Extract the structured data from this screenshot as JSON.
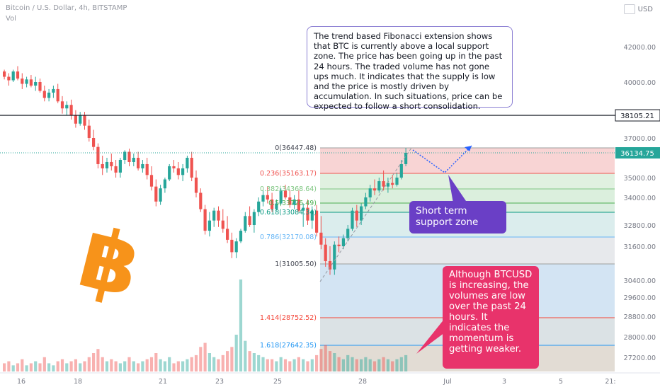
{
  "header": {
    "symbol_line": "Bitcoin / U.S. Dollar, 4h, BITSTAMP",
    "volume_label": "Vol",
    "currency": "USD"
  },
  "colors": {
    "up": "#26a69a",
    "down": "#ef5350",
    "bitcoin_logo": "#f7931a",
    "note_border": "#8b7fd3",
    "support_box": "#6a3fc6",
    "weak_box": "#e8336b"
  },
  "annotations": {
    "analysis_note": "The trend based Fibonacci extension shows that BTC is currently above a local support zone. The price has been going up in the past 24 hours. The traded volume has not gone ups much. It indicates that the supply is low and the price is mostly driven by accumulation. In such situations, price can be expected to follow a short consolidation.",
    "support_zone": "Short term support zone",
    "momentum_note": "Although BTCUSD is increasing, the volumes are low over the past 24 hours. It indicates the momentum is getting weaker."
  },
  "chart_data": {
    "type": "candlestick",
    "title": "Bitcoin / U.S. Dollar, 4h, BITSTAMP",
    "y_axis_ticks": [
      42000,
      40000,
      37000,
      35000,
      34000,
      32800,
      31600,
      30400,
      29600,
      28800,
      28000,
      27200
    ],
    "y_axis_labels": [
      "42000.00",
      "40000.00",
      "37000.00",
      "35000.00",
      "34000.00",
      "32800.00",
      "31600.00",
      "30400.00",
      "29600.00",
      "28800.00",
      "28000.00",
      "27200.00"
    ],
    "x_axis_labels": [
      "16",
      "18",
      "21",
      "23",
      "25",
      "28",
      "Jul",
      "3",
      "5",
      "21:"
    ],
    "price_markers": [
      {
        "label": "38105.21",
        "value": 38105.21,
        "style": "line"
      },
      {
        "label": "36134.75",
        "value": 36134.75,
        "style": "last"
      }
    ],
    "fib_levels": [
      {
        "ratio": "0",
        "value": 36447.48,
        "label": "0(36447.48)"
      },
      {
        "ratio": "0.236",
        "value": 35163.17,
        "label": "0.236(35163.17)"
      },
      {
        "ratio": "0.382",
        "value": 34368.64,
        "label": "0.382(34368.64)"
      },
      {
        "ratio": "0.5",
        "value": 33726.49,
        "label": "0.5(33726.49)"
      },
      {
        "ratio": "0.618",
        "value": 33084.34,
        "label": "0.618(33084.34)"
      },
      {
        "ratio": "0.786",
        "value": 32170.08,
        "label": "0.786(32170.08)"
      },
      {
        "ratio": "1",
        "value": 31005.5,
        "label": "1(31005.50)"
      },
      {
        "ratio": "1.414",
        "value": 28752.52,
        "label": "1.414(28752.52)"
      },
      {
        "ratio": "1.618",
        "value": 27642.35,
        "label": "1.618(27642.35)"
      }
    ],
    "candles_ohlc": [
      [
        40600,
        40700,
        40150,
        40300
      ],
      [
        40300,
        40500,
        39800,
        40100
      ],
      [
        40100,
        40700,
        40000,
        40600
      ],
      [
        40600,
        40900,
        40100,
        40200
      ],
      [
        40200,
        40500,
        39600,
        39900
      ],
      [
        39900,
        40300,
        39700,
        40150
      ],
      [
        40150,
        40400,
        39700,
        39800
      ],
      [
        39800,
        40300,
        39500,
        40000
      ],
      [
        40000,
        40200,
        39400,
        39500
      ],
      [
        39500,
        39800,
        38900,
        39100
      ],
      [
        39100,
        39600,
        38900,
        39400
      ],
      [
        39400,
        39800,
        39100,
        39600
      ],
      [
        39600,
        39900,
        38800,
        38900
      ],
      [
        38900,
        39200,
        38200,
        38500
      ],
      [
        38500,
        38900,
        38100,
        38700
      ],
      [
        38700,
        39000,
        37900,
        38100
      ],
      [
        38100,
        38400,
        37500,
        37700
      ],
      [
        37700,
        38300,
        37600,
        38100
      ],
      [
        38100,
        38300,
        37400,
        37600
      ],
      [
        37600,
        37900,
        36800,
        37000
      ],
      [
        37000,
        37400,
        36300,
        36500
      ],
      [
        36500,
        36700,
        35400,
        35600
      ],
      [
        35600,
        36000,
        35100,
        35400
      ],
      [
        35400,
        35900,
        35200,
        35700
      ],
      [
        35700,
        36100,
        35300,
        35500
      ],
      [
        35500,
        35800,
        35000,
        35200
      ],
      [
        35200,
        35900,
        35000,
        35800
      ],
      [
        35800,
        36300,
        35600,
        36200
      ],
      [
        36200,
        36400,
        35500,
        35700
      ],
      [
        35700,
        36100,
        35500,
        35900
      ],
      [
        35900,
        36200,
        35300,
        35400
      ],
      [
        35400,
        35800,
        35200,
        35600
      ],
      [
        35600,
        35900,
        34900,
        35100
      ],
      [
        35100,
        35500,
        34300,
        34500
      ],
      [
        34500,
        34900,
        33500,
        33800
      ],
      [
        33800,
        34600,
        33600,
        34400
      ],
      [
        34400,
        35000,
        34200,
        34900
      ],
      [
        34900,
        35600,
        34800,
        35500
      ],
      [
        35500,
        35800,
        35200,
        35400
      ],
      [
        35400,
        35700,
        34900,
        35100
      ],
      [
        35100,
        35600,
        34800,
        35400
      ],
      [
        35400,
        36000,
        35200,
        35900
      ],
      [
        35900,
        36200,
        34800,
        35000
      ],
      [
        35000,
        35300,
        34000,
        34200
      ],
      [
        34200,
        34400,
        33100,
        33300
      ],
      [
        33300,
        33600,
        32300,
        32500
      ],
      [
        32500,
        33100,
        32200,
        32900
      ],
      [
        32900,
        33400,
        32700,
        33200
      ],
      [
        33200,
        33500,
        32700,
        32900
      ],
      [
        32900,
        33300,
        32400,
        32600
      ],
      [
        32600,
        33000,
        31800,
        32000
      ],
      [
        32000,
        32400,
        31200,
        31400
      ],
      [
        31400,
        32100,
        31200,
        31900
      ],
      [
        31900,
        32600,
        31800,
        32500
      ],
      [
        32500,
        33100,
        32400,
        33000
      ],
      [
        33000,
        33500,
        32700,
        32800
      ],
      [
        32800,
        33300,
        32400,
        33100
      ],
      [
        33100,
        34000,
        33000,
        33800
      ],
      [
        33800,
        34300,
        33500,
        34100
      ],
      [
        34100,
        34500,
        33700,
        33900
      ],
      [
        33900,
        34200,
        33100,
        33300
      ],
      [
        33300,
        33900,
        33200,
        33700
      ],
      [
        33700,
        34400,
        33600,
        34300
      ],
      [
        34300,
        34600,
        33900,
        34000
      ],
      [
        34000,
        34300,
        33400,
        33600
      ],
      [
        33600,
        34100,
        33300,
        33900
      ],
      [
        33900,
        34300,
        33100,
        33200
      ],
      [
        33200,
        33700,
        32700,
        33400
      ],
      [
        33400,
        33900,
        32800,
        32900
      ],
      [
        32900,
        33500,
        32600,
        33200
      ],
      [
        33200,
        33600,
        32200,
        32400
      ],
      [
        32400,
        33000,
        31500,
        31700
      ],
      [
        31700,
        32100,
        30900,
        31100
      ],
      [
        31100,
        31600,
        30600,
        30800
      ],
      [
        30800,
        31900,
        30600,
        31700
      ],
      [
        31700,
        32200,
        31400,
        31600
      ],
      [
        31600,
        32300,
        31500,
        32100
      ],
      [
        32100,
        32800,
        31900,
        32600
      ],
      [
        32600,
        33400,
        32500,
        33200
      ],
      [
        33200,
        33600,
        32700,
        32900
      ],
      [
        32900,
        33700,
        32800,
        33500
      ],
      [
        33500,
        34200,
        33300,
        34000
      ],
      [
        34000,
        34600,
        33800,
        34400
      ],
      [
        34400,
        34900,
        34100,
        34300
      ],
      [
        34300,
        35000,
        34200,
        34800
      ],
      [
        34800,
        35300,
        34300,
        34500
      ],
      [
        34500,
        35000,
        34200,
        34700
      ],
      [
        34700,
        35100,
        34400,
        34600
      ],
      [
        34600,
        35200,
        34500,
        35000
      ],
      [
        35000,
        35800,
        34900,
        35600
      ],
      [
        35600,
        36447,
        35500,
        36134
      ]
    ],
    "volume": [
      4,
      5,
      3,
      4,
      6,
      3,
      4,
      5,
      4,
      7,
      4,
      3,
      5,
      6,
      4,
      5,
      6,
      4,
      5,
      7,
      9,
      11,
      7,
      5,
      6,
      5,
      4,
      5,
      7,
      5,
      4,
      5,
      6,
      7,
      9,
      6,
      5,
      7,
      4,
      5,
      5,
      6,
      7,
      8,
      12,
      14,
      9,
      7,
      6,
      8,
      10,
      12,
      18,
      45,
      15,
      10,
      9,
      8,
      7,
      6,
      6,
      5,
      7,
      6,
      5,
      6,
      7,
      6,
      5,
      6,
      8,
      11,
      13,
      10,
      9,
      7,
      6,
      8,
      7,
      6,
      6,
      7,
      6,
      5,
      6,
      7,
      6,
      5,
      6,
      7,
      8
    ]
  }
}
